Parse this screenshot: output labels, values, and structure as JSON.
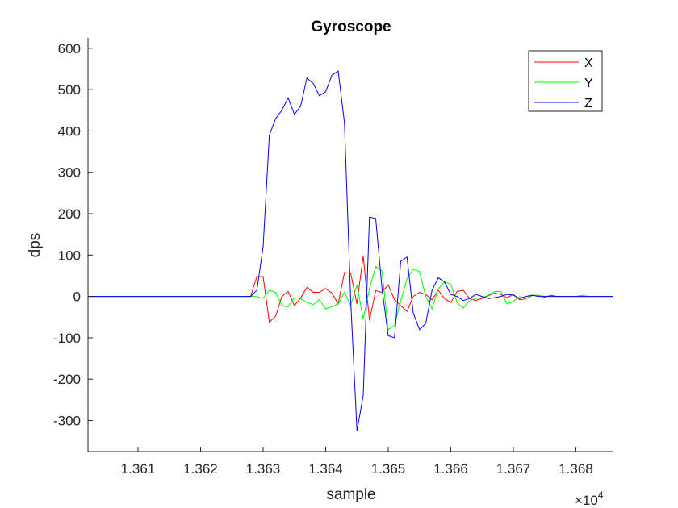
{
  "chart_data": {
    "type": "line",
    "title": "Gyroscope",
    "xlabel": "sample",
    "ylabel": "dps",
    "x_exponent_base": "×10",
    "x_exponent_power": "4",
    "xlim": [
      13602,
      13686
    ],
    "ylim": [
      -375,
      625
    ],
    "xticks": [
      13610,
      13620,
      13630,
      13640,
      13650,
      13660,
      13670,
      13680
    ],
    "xtick_labels": [
      "1.361",
      "1.362",
      "1.363",
      "1.364",
      "1.365",
      "1.366",
      "1.367",
      "1.368"
    ],
    "yticks": [
      -300,
      -200,
      -100,
      0,
      100,
      200,
      300,
      400,
      500,
      600
    ],
    "ytick_labels": [
      "-300",
      "-200",
      "-100",
      "0",
      "100",
      "200",
      "300",
      "400",
      "500",
      "600"
    ],
    "grid": false,
    "legend_position": "top-right",
    "series": [
      {
        "name": "X",
        "color": "#ff0000",
        "x": [
          13602,
          13628,
          13629,
          13630,
          13631,
          13632,
          13633,
          13634,
          13635,
          13636,
          13637,
          13638,
          13639,
          13640,
          13641,
          13642,
          13643,
          13644,
          13645,
          13646,
          13647,
          13648,
          13649,
          13650,
          13651,
          13652,
          13653,
          13654,
          13655,
          13656,
          13657,
          13658,
          13659,
          13660,
          13661,
          13662,
          13663,
          13664,
          13665,
          13666,
          13667,
          13668,
          13669,
          13670,
          13671,
          13672,
          13673,
          13674,
          13675,
          13676,
          13677,
          13678,
          13679,
          13680,
          13681,
          13682,
          13683,
          13684,
          13685,
          13686
        ],
        "y": [
          0,
          0,
          48,
          48,
          -62,
          -48,
          0,
          12,
          -22,
          -4,
          22,
          10,
          10,
          19,
          8,
          -18,
          58,
          56,
          -18,
          98,
          -58,
          14,
          10,
          28,
          -8,
          -22,
          -36,
          0,
          10,
          5,
          -8,
          15,
          -5,
          -15,
          12,
          15,
          -5,
          -10,
          -5,
          2,
          8,
          5,
          -3,
          5,
          -8,
          -6,
          2,
          3,
          -2,
          3,
          0,
          0,
          0,
          0,
          0,
          0,
          0,
          0,
          0,
          0
        ]
      },
      {
        "name": "Y",
        "color": "#00ff00",
        "x": [
          13602,
          13628,
          13629,
          13630,
          13631,
          13632,
          13633,
          13634,
          13635,
          13636,
          13637,
          13638,
          13639,
          13640,
          13641,
          13642,
          13643,
          13644,
          13645,
          13646,
          13647,
          13648,
          13649,
          13650,
          13651,
          13652,
          13653,
          13654,
          13655,
          13656,
          13657,
          13658,
          13659,
          13660,
          13661,
          13662,
          13663,
          13664,
          13665,
          13666,
          13667,
          13668,
          13669,
          13670,
          13671,
          13672,
          13673,
          13674,
          13675,
          13676,
          13677,
          13678,
          13679,
          13680,
          13681,
          13682,
          13683,
          13684,
          13685,
          13686
        ],
        "y": [
          0,
          0,
          0,
          -5,
          15,
          10,
          -22,
          -25,
          -3,
          -5,
          -14,
          -20,
          -8,
          -30,
          -25,
          -18,
          10,
          -22,
          28,
          -55,
          18,
          72,
          62,
          -80,
          -70,
          -10,
          42,
          66,
          60,
          0,
          -30,
          18,
          35,
          30,
          -15,
          -28,
          -10,
          -5,
          -3,
          3,
          12,
          12,
          -18,
          -12,
          0,
          -5,
          3,
          3,
          0,
          0,
          0,
          0,
          0,
          0,
          3,
          0,
          0,
          0,
          0,
          0
        ]
      },
      {
        "name": "Z",
        "color": "#0000ff",
        "x": [
          13602,
          13628,
          13629,
          13630,
          13631,
          13632,
          13633,
          13634,
          13635,
          13636,
          13637,
          13638,
          13639,
          13640,
          13641,
          13642,
          13643,
          13644,
          13645,
          13646,
          13647,
          13648,
          13649,
          13650,
          13651,
          13652,
          13653,
          13654,
          13655,
          13656,
          13657,
          13658,
          13659,
          13660,
          13661,
          13662,
          13663,
          13664,
          13665,
          13666,
          13667,
          13668,
          13669,
          13670,
          13671,
          13672,
          13673,
          13674,
          13675,
          13676,
          13677,
          13678,
          13679,
          13680,
          13681,
          13682,
          13683,
          13684,
          13685,
          13686
        ],
        "y": [
          0,
          0,
          15,
          120,
          390,
          430,
          450,
          480,
          440,
          460,
          528,
          515,
          485,
          495,
          535,
          545,
          420,
          -10,
          -325,
          -240,
          192,
          188,
          20,
          -95,
          -100,
          85,
          95,
          -40,
          -80,
          -65,
          15,
          45,
          35,
          5,
          0,
          -10,
          -5,
          5,
          0,
          -5,
          -3,
          0,
          5,
          3,
          -5,
          0,
          3,
          0,
          0,
          0,
          0,
          0,
          0,
          0,
          0,
          0,
          0,
          0,
          0,
          0
        ]
      }
    ]
  }
}
